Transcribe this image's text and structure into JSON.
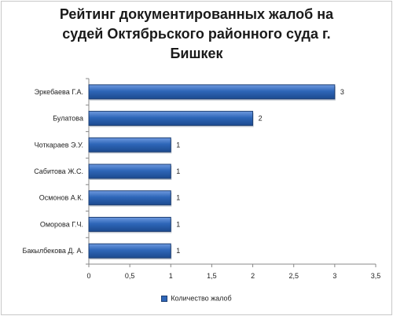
{
  "chart_data": {
    "type": "bar",
    "orientation": "horizontal",
    "title": "Рейтинг документированных жалоб на\nсудей Октябрьского районного суда г.\nБишкек",
    "categories": [
      "Эркебаева Г.А.",
      "Булатова",
      "Чоткараев Э.У.",
      "Сабитова Ж.С.",
      "Осмонов А.К.",
      "Оморова Г.Ч.",
      "Бакылбекова Д. А."
    ],
    "series": [
      {
        "name": "Количество жалоб",
        "values": [
          3,
          2,
          1,
          1,
          1,
          1,
          1
        ]
      }
    ],
    "xlim": [
      0,
      3.5
    ],
    "xticks": [
      "0",
      "0,5",
      "1",
      "1,5",
      "2",
      "2,5",
      "3",
      "3,5"
    ],
    "grid": false,
    "legend_position": "bottom",
    "bar_color": "#2e66b8"
  }
}
